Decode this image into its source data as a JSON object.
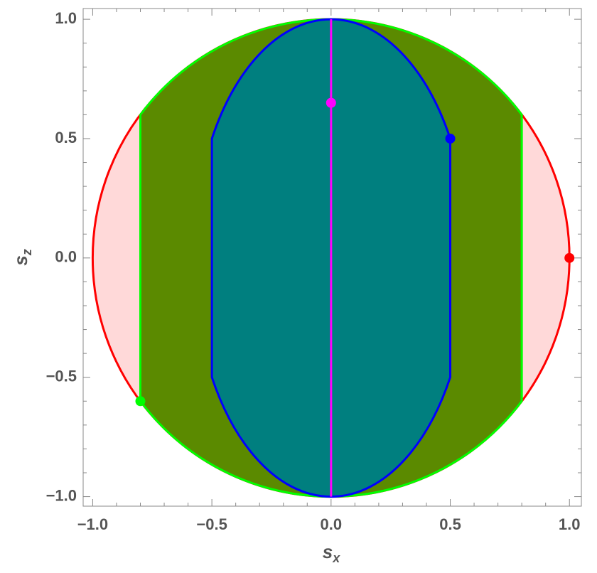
{
  "chart_data": {
    "type": "region",
    "xlabel": {
      "base": "s",
      "sub": "x"
    },
    "ylabel": {
      "base": "s",
      "sub": "z"
    },
    "xlim": [
      -1.04,
      1.05
    ],
    "ylim": [
      -1.04,
      1.045
    ],
    "xticks": [
      {
        "value": -1.0,
        "label": "−1.0"
      },
      {
        "value": -0.5,
        "label": "−0.5"
      },
      {
        "value": 0,
        "label": "0.0"
      },
      {
        "value": 0.5,
        "label": "0.5"
      },
      {
        "value": 1.0,
        "label": "1.0"
      }
    ],
    "yticks": [
      {
        "value": -1.0,
        "label": "−1.0"
      },
      {
        "value": -0.5,
        "label": "−0.5"
      },
      {
        "value": 0,
        "label": "0.0"
      },
      {
        "value": 0.5,
        "label": "0.5"
      },
      {
        "value": 1.0,
        "label": "1.0"
      }
    ],
    "xminorticks": [
      -0.9,
      -0.8,
      -0.7,
      -0.6,
      -0.4,
      -0.3,
      -0.2,
      -0.1,
      0.1,
      0.2,
      0.3,
      0.4,
      0.6,
      0.7,
      0.8,
      0.9
    ],
    "yminorticks": [
      -0.9,
      -0.8,
      -0.7,
      -0.6,
      -0.4,
      -0.3,
      -0.2,
      -0.1,
      0.1,
      0.2,
      0.3,
      0.4,
      0.6,
      0.7,
      0.8,
      0.9
    ],
    "regions": [
      {
        "shape": "disk",
        "radius": 1,
        "fill": "#ffd9d9",
        "color": "#ff0000"
      },
      {
        "shape": "strip",
        "radius": 1,
        "half_width": 0.8,
        "fill": "#5b8a00",
        "color": "#00ff00"
      },
      {
        "shape": "capped-ellipse",
        "half_width": 0.5,
        "corner_z": 0.5,
        "top": 1,
        "fill": "#007f7f",
        "color": "#0000ff"
      }
    ],
    "line": {
      "x": [
        0,
        0
      ],
      "y": [
        -1,
        1
      ],
      "color": "#ff00ff"
    },
    "points": {
      "x": [
        1,
        -0.8,
        0.5,
        0
      ],
      "y": [
        0,
        -0.6,
        0.5,
        0.65
      ],
      "colors": [
        "#ff0000",
        "#00ff00",
        "#0000ff",
        "#ff00ff"
      ]
    }
  }
}
